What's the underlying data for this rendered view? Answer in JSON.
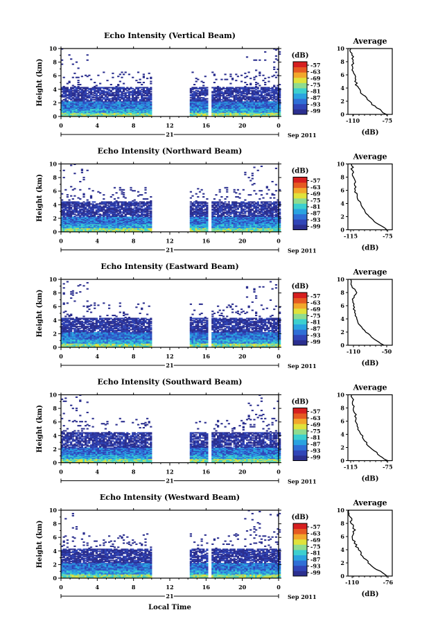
{
  "colors": {
    "scale": [
      "#2b2f8f",
      "#3045b7",
      "#2f6fd6",
      "#2aa3e0",
      "#3ccfcf",
      "#8fdc8f",
      "#e0e23b",
      "#f2a72b",
      "#e65a22",
      "#d61f1f"
    ],
    "background": "#ffffff"
  },
  "footer": {
    "xlabel": "Local Time"
  },
  "chart_data": [
    {
      "type": "heatmap",
      "title": "Echo Intensity (Vertical Beam)",
      "ylabel": "Height (km)",
      "ylim": [
        0,
        10
      ],
      "xlim": [
        0,
        24
      ],
      "x_ticks": [
        "0",
        "4",
        "8",
        "12",
        "16",
        "20",
        "0"
      ],
      "y_ticks": [
        "0",
        "2",
        "4",
        "6",
        "8",
        "10"
      ],
      "date_label": "21",
      "month_label": "Sep 2011",
      "colorbar": {
        "unit": "(dB)",
        "labels": [
          "-57",
          "-63",
          "-69",
          "-75",
          "-81",
          "-87",
          "-93",
          "-99"
        ]
      },
      "data_gaps": [
        [
          9.8,
          14.0
        ],
        [
          16.0,
          16.4
        ]
      ],
      "echo_top_km": 4.3,
      "profile": {
        "title": "Average",
        "xlabel": "(dB)",
        "x_ticks": [
          "-110",
          "-75"
        ],
        "xlim": [
          -115,
          -70
        ],
        "heights_km": [
          0,
          1,
          2,
          3,
          4,
          5,
          6,
          7,
          8,
          9,
          10
        ],
        "values_db": [
          -76,
          -86,
          -93,
          -100,
          -104,
          -108,
          -108,
          -110,
          -110,
          -111,
          -112
        ]
      }
    },
    {
      "type": "heatmap",
      "title": "Echo Intensity (Northward Beam)",
      "ylabel": "Height (km)",
      "ylim": [
        0,
        10
      ],
      "xlim": [
        0,
        24
      ],
      "x_ticks": [
        "0",
        "4",
        "8",
        "12",
        "16",
        "20",
        "0"
      ],
      "y_ticks": [
        "0",
        "2",
        "4",
        "6",
        "8",
        "10"
      ],
      "date_label": "21",
      "month_label": "Sep 2011",
      "colorbar": {
        "unit": "(dB)",
        "labels": [
          "-57",
          "-63",
          "-69",
          "-75",
          "-81",
          "-87",
          "-93",
          "-99"
        ]
      },
      "data_gaps": [
        [
          9.8,
          14.0
        ],
        [
          16.0,
          16.4
        ]
      ],
      "echo_top_km": 4.5,
      "profile": {
        "title": "Average",
        "xlabel": "(dB)",
        "x_ticks": [
          "-115",
          "-75"
        ],
        "xlim": [
          -118,
          -70
        ],
        "heights_km": [
          0,
          1,
          2,
          3,
          4,
          5,
          6,
          7,
          8,
          9,
          10
        ],
        "values_db": [
          -76,
          -87,
          -95,
          -100,
          -104,
          -108,
          -110,
          -111,
          -112,
          -113,
          -114
        ]
      }
    },
    {
      "type": "heatmap",
      "title": "Echo Intensity (Eastward Beam)",
      "ylabel": "Height (km)",
      "ylim": [
        0,
        10
      ],
      "xlim": [
        0,
        24
      ],
      "x_ticks": [
        "0",
        "4",
        "8",
        "12",
        "16",
        "20",
        "0"
      ],
      "y_ticks": [
        "0",
        "2",
        "4",
        "6",
        "8",
        "10"
      ],
      "date_label": "21",
      "month_label": "Sep 2011",
      "colorbar": {
        "unit": "(dB)",
        "labels": [
          "-57",
          "-63",
          "-69",
          "-75",
          "-81",
          "-87",
          "-93",
          "-99"
        ]
      },
      "data_gaps": [
        [
          9.8,
          14.0
        ],
        [
          16.0,
          16.4
        ]
      ],
      "echo_top_km": 4.3,
      "profile": {
        "title": "Average",
        "xlabel": "(dB)",
        "x_ticks": [
          "-110",
          "-50"
        ],
        "xlim": [
          -120,
          -40
        ],
        "heights_km": [
          0,
          1,
          2,
          3,
          4,
          5,
          6,
          7,
          8,
          9,
          10
        ],
        "values_db": [
          -55,
          -74,
          -88,
          -98,
          -104,
          -108,
          -110,
          -112,
          -104,
          -113,
          -115
        ]
      }
    },
    {
      "type": "heatmap",
      "title": "Echo Intensity (Southward Beam)",
      "ylabel": "Height (km)",
      "ylim": [
        0,
        10
      ],
      "xlim": [
        0,
        24
      ],
      "x_ticks": [
        "0",
        "4",
        "8",
        "12",
        "16",
        "20",
        "0"
      ],
      "y_ticks": [
        "0",
        "2",
        "4",
        "6",
        "8",
        "10"
      ],
      "date_label": "21",
      "month_label": "Sep 2011",
      "colorbar": {
        "unit": "(dB)",
        "labels": [
          "-57",
          "-63",
          "-69",
          "-75",
          "-81",
          "-87",
          "-93",
          "-99"
        ]
      },
      "data_gaps": [
        [
          9.8,
          14.0
        ],
        [
          16.0,
          16.4
        ]
      ],
      "echo_top_km": 4.5,
      "profile": {
        "title": "Average",
        "xlabel": "(dB)",
        "x_ticks": [
          "-115",
          "-75"
        ],
        "xlim": [
          -118,
          -70
        ],
        "heights_km": [
          0,
          1,
          2,
          3,
          4,
          5,
          6,
          7,
          8,
          9,
          10
        ],
        "values_db": [
          -75,
          -86,
          -94,
          -100,
          -104,
          -107,
          -110,
          -109,
          -112,
          -113,
          -114
        ]
      }
    },
    {
      "type": "heatmap",
      "title": "Echo Intensity (Westward Beam)",
      "ylabel": "Height (km)",
      "ylim": [
        0,
        10
      ],
      "xlim": [
        0,
        24
      ],
      "x_ticks": [
        "0",
        "4",
        "8",
        "12",
        "16",
        "20",
        "0"
      ],
      "y_ticks": [
        "0",
        "2",
        "4",
        "6",
        "8",
        "10"
      ],
      "date_label": "21",
      "month_label": "Sep 2011",
      "colorbar": {
        "unit": "(dB)",
        "labels": [
          "-57",
          "-63",
          "-69",
          "-75",
          "-81",
          "-87",
          "-93",
          "-99"
        ]
      },
      "data_gaps": [
        [
          9.8,
          14.0
        ],
        [
          16.0,
          16.4
        ]
      ],
      "echo_top_km": 4.3,
      "profile": {
        "title": "Average",
        "xlabel": "(dB)",
        "x_ticks": [
          "-110",
          "-76"
        ],
        "xlim": [
          -114,
          -72
        ],
        "heights_km": [
          0,
          1,
          2,
          3,
          4,
          5,
          6,
          7,
          8,
          9,
          10
        ],
        "values_db": [
          -77,
          -87,
          -95,
          -100,
          -104,
          -108,
          -110,
          -107,
          -111,
          -112,
          -113
        ]
      }
    }
  ]
}
